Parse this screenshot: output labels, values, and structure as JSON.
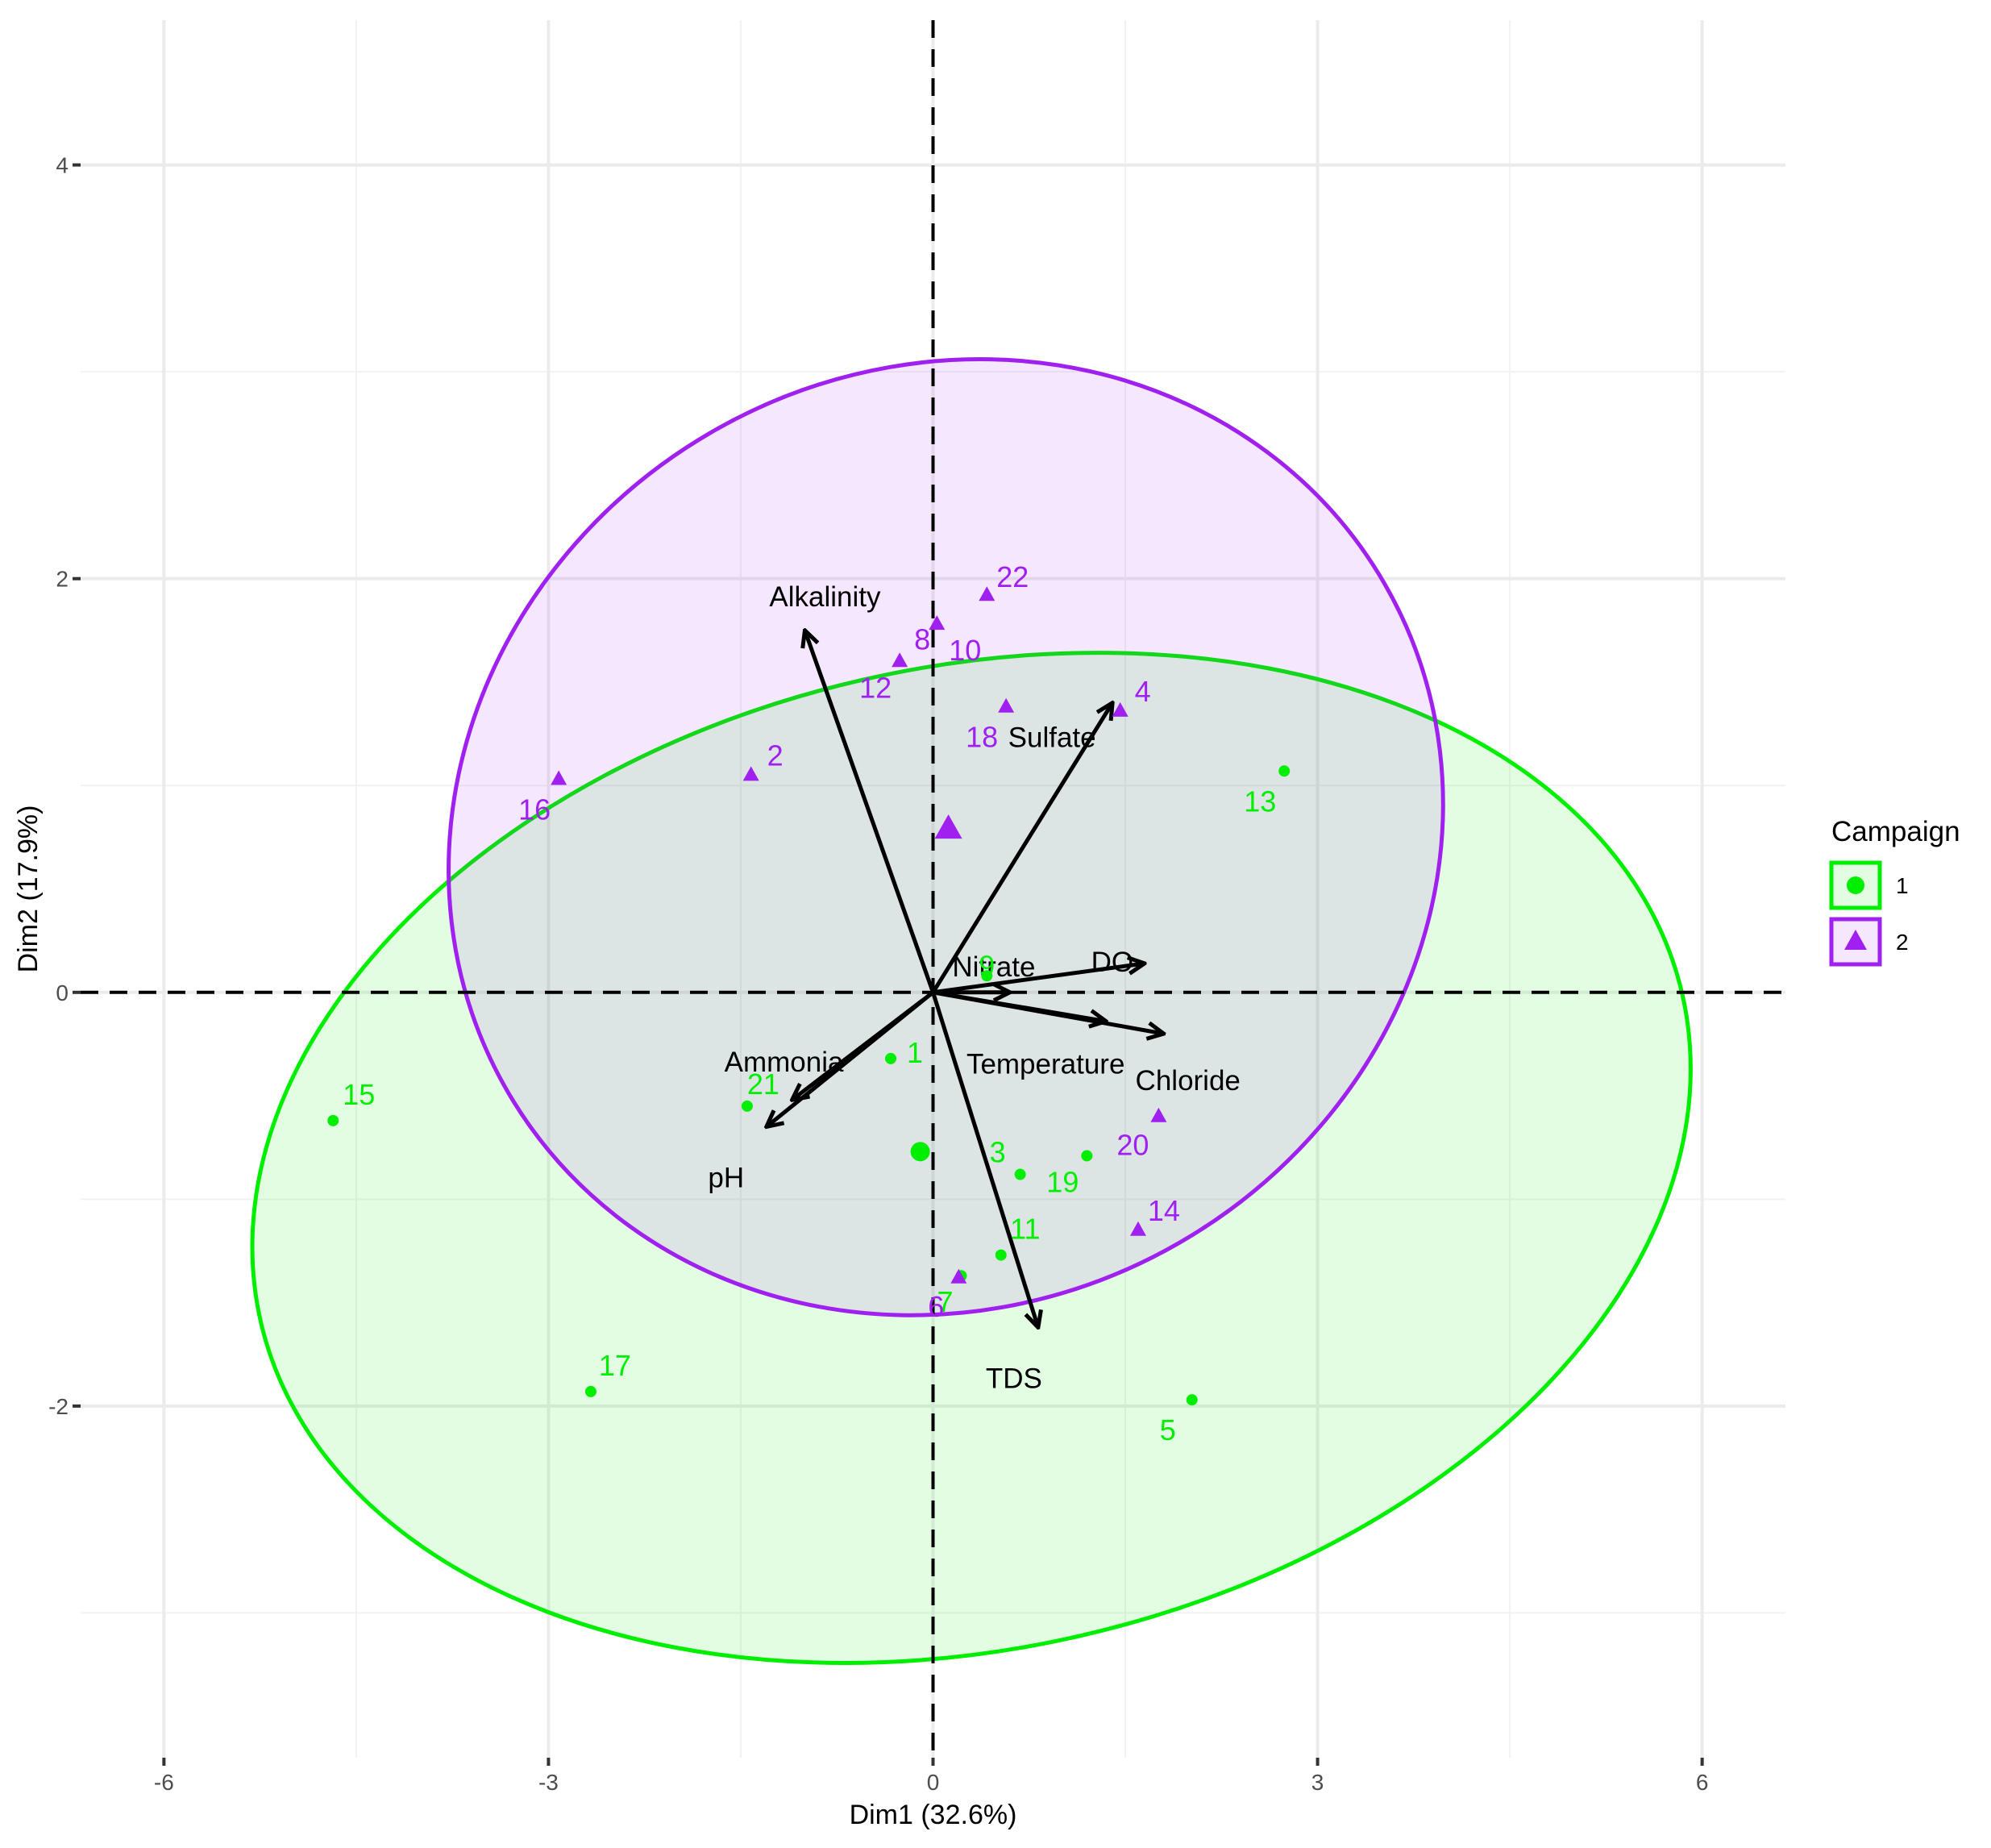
{
  "chart_data": {
    "type": "scatter",
    "title": "",
    "xlabel": "Dim1 (32.6%)",
    "ylabel": "Dim2 (17.9%)",
    "xlim": [
      -6.65,
      6.65
    ],
    "ylim": [
      -3.7,
      4.7
    ],
    "x_ticks": [
      -6,
      -3,
      0,
      3,
      6
    ],
    "y_ticks": [
      -2,
      0,
      2,
      4
    ],
    "x_tick_labels": [
      "-6",
      "-3",
      "0",
      "3",
      "6"
    ],
    "y_tick_labels": [
      "-2",
      "0",
      "2",
      "4"
    ],
    "grid": true,
    "legend": {
      "title": "Campaign",
      "position": "right",
      "entries": [
        {
          "label": "1",
          "color": "#00ee00",
          "shape": "circle"
        },
        {
          "label": "2",
          "color": "#a020f0",
          "shape": "triangle"
        }
      ]
    },
    "colors": {
      "campaign_1": "#00ee00",
      "campaign_2": "#a020f0",
      "arrow": "#000000"
    },
    "series": [
      {
        "name": "1",
        "shape": "circle",
        "points": [
          {
            "label": "15",
            "x": -4.68,
            "y": -0.62
          },
          {
            "label": "17",
            "x": -2.67,
            "y": -1.93
          },
          {
            "label": "21",
            "x": -1.45,
            "y": -0.55
          },
          {
            "label": "1",
            "x": -0.33,
            "y": -0.32
          },
          {
            "label": "9",
            "x": 0.42,
            "y": 0.08
          },
          {
            "label": "3",
            "x": 0.68,
            "y": -0.88
          },
          {
            "label": "19",
            "x": 1.2,
            "y": -0.79
          },
          {
            "label": "11",
            "x": 0.53,
            "y": -1.27
          },
          {
            "label": "7",
            "x": 0.22,
            "y": -1.37
          },
          {
            "label": "5",
            "x": 2.02,
            "y": -1.97
          },
          {
            "label": "13",
            "x": 2.74,
            "y": 1.07
          }
        ],
        "centroid": {
          "x": -0.1,
          "y": -0.77
        },
        "ellipse": {
          "cx": 0.3,
          "cy": -0.8,
          "rx": 5.69,
          "ry": 2.37,
          "angle_deg": 13
        }
      },
      {
        "name": "2",
        "shape": "triangle",
        "points": [
          {
            "label": "16",
            "x": -2.92,
            "y": 1.03
          },
          {
            "label": "2",
            "x": -1.42,
            "y": 1.05
          },
          {
            "label": "8",
            "x": -0.26,
            "y": 1.6
          },
          {
            "label": "12",
            "x": -0.26,
            "y": 1.6
          },
          {
            "label": "10",
            "x": 0.03,
            "y": 1.78
          },
          {
            "label": "22",
            "x": 0.42,
            "y": 1.92
          },
          {
            "label": "18",
            "x": 0.57,
            "y": 1.38
          },
          {
            "label": "4",
            "x": 1.46,
            "y": 1.36
          },
          {
            "label": "20",
            "x": 1.76,
            "y": -0.6
          },
          {
            "label": "14",
            "x": 1.6,
            "y": -1.15
          },
          {
            "label": "6",
            "x": 0.2,
            "y": -1.38
          }
        ],
        "centroid": {
          "x": 0.12,
          "y": 0.79
        },
        "ellipse": {
          "cx": 0.1,
          "cy": 0.75,
          "rx": 3.65,
          "ry": 2.45,
          "angle_deg": -60
        }
      }
    ],
    "variables": [
      {
        "name": "Alkalinity",
        "x": -1.0,
        "y": 1.75
      },
      {
        "name": "Sulfate",
        "x": 1.4,
        "y": 1.4
      },
      {
        "name": "Nitrate",
        "x": 0.6,
        "y": 0.0
      },
      {
        "name": "DO",
        "x": 1.65,
        "y": 0.14
      },
      {
        "name": "Temperature",
        "x": 1.35,
        "y": -0.14
      },
      {
        "name": "Chloride",
        "x": 1.8,
        "y": -0.2
      },
      {
        "name": "Ammonia",
        "x": -1.1,
        "y": -0.52
      },
      {
        "name": "pH",
        "x": -1.3,
        "y": -0.65
      },
      {
        "name": "TDS",
        "x": 0.82,
        "y": -1.62
      }
    ]
  }
}
